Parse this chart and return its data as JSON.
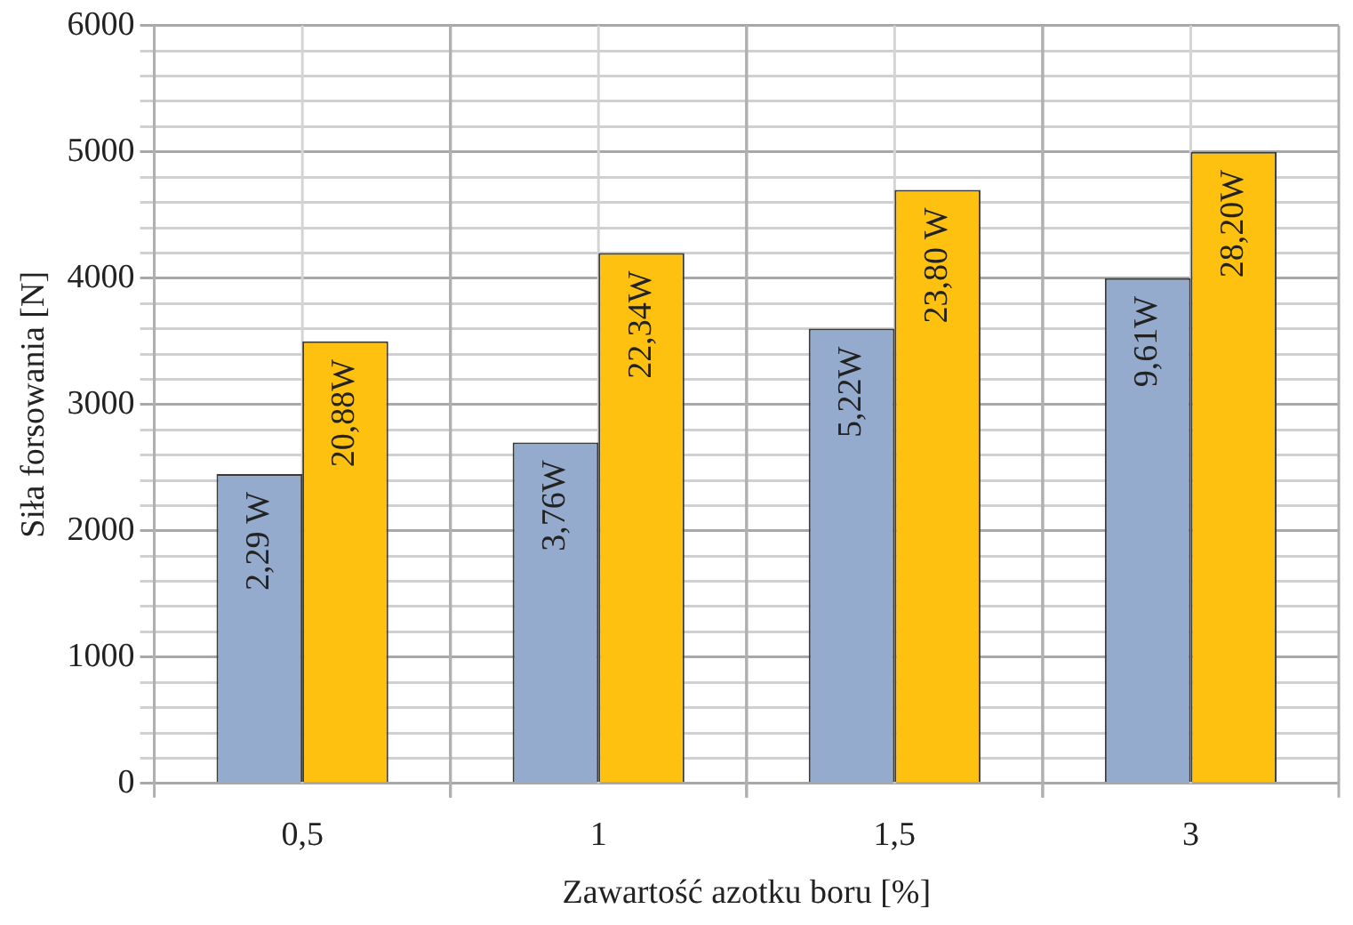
{
  "chart_data": {
    "type": "bar",
    "xlabel": "Zawartość azotku boru [%]",
    "ylabel": "Siła forsowania [N]",
    "categories": [
      "0,5",
      "1",
      "1,5",
      "3"
    ],
    "series": [
      {
        "color": "#95abcd",
        "values": [
          2450,
          2700,
          3600,
          4000
        ]
      },
      {
        "color": "#fec110",
        "values": [
          3500,
          4200,
          4700,
          5000
        ]
      }
    ],
    "annotations": [
      {
        "text": "2,29 W",
        "x": "0,5",
        "y": 2450
      },
      {
        "text": "3,76W",
        "x": "1",
        "y": 2700
      },
      {
        "text": "5,22W",
        "x": "1,5",
        "y": 3600
      },
      {
        "text": "9,61W",
        "x": "3",
        "y": 4000
      },
      {
        "text": "20,88W",
        "x": "0,5",
        "y": 3500
      },
      {
        "text": "22,34W",
        "x": "1",
        "y": 4200
      },
      {
        "text": "23,80 W",
        "x": "1,5",
        "y": 4700
      },
      {
        "text": "28,20W",
        "x": "3",
        "y": 5000
      }
    ],
    "ylim": [
      0,
      6000
    ],
    "yticks": [
      0,
      {
        "value": 200,
        "label": null
      },
      {
        "value": 400,
        "label": null
      },
      {
        "value": 600,
        "label": null
      },
      {
        "value": 800,
        "label": null
      },
      1000,
      {
        "value": 1200,
        "label": null
      },
      {
        "value": 1400,
        "label": null
      },
      {
        "value": 1600,
        "label": null
      },
      {
        "value": 1800,
        "label": null
      },
      2000,
      {
        "value": 2200,
        "label": null
      },
      {
        "value": 2400,
        "label": null
      },
      {
        "value": 2600,
        "label": null
      },
      {
        "value": 2800,
        "label": null
      },
      3000,
      {
        "value": 3200,
        "label": null
      },
      {
        "value": 3400,
        "label": null
      },
      {
        "value": 3600,
        "label": null
      },
      {
        "value": 3800,
        "label": null
      },
      4000,
      {
        "value": 4200,
        "label": null
      },
      {
        "value": 4400,
        "label": null
      },
      {
        "value": 4600,
        "label": null
      },
      {
        "value": 4800,
        "label": null
      },
      5000,
      {
        "value": 5200,
        "label": null
      },
      {
        "value": 5400,
        "label": null
      },
      {
        "value": 5600,
        "label": null
      },
      {
        "value": 5800,
        "label": null
      },
      6000
    ],
    "grid": true,
    "legend": false
  }
}
